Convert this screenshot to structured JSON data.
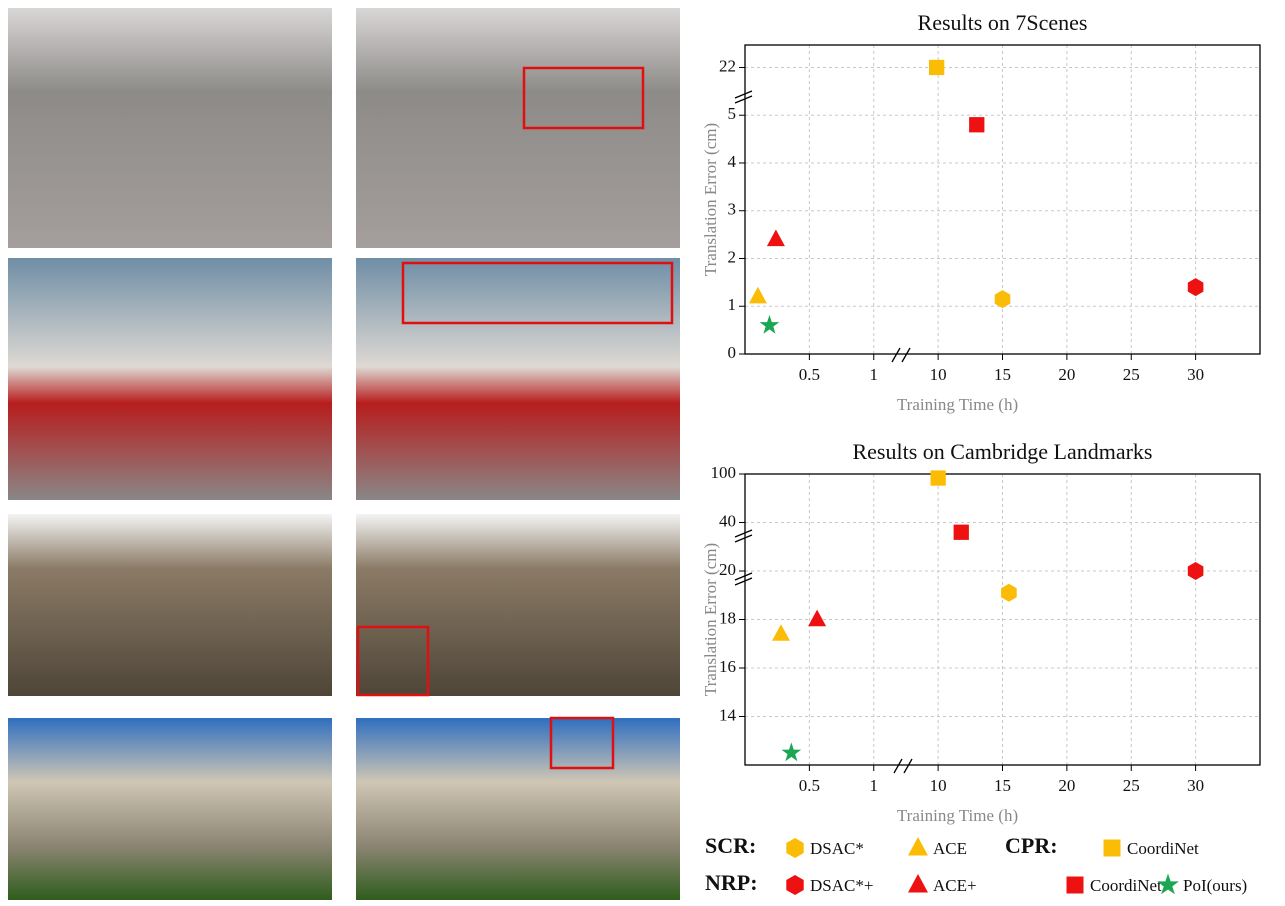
{
  "chart_data": [
    {
      "type": "scatter",
      "title": "Results on 7Scenes",
      "x_label": "Training Time (h)",
      "y_label": "Translation Error (cm)",
      "xlim": [
        0,
        35
      ],
      "xticks": [
        0.5,
        1,
        10,
        15,
        20,
        25,
        30
      ],
      "ylim": [
        0,
        30
      ],
      "yticks": [
        0,
        1,
        2,
        3,
        4,
        5,
        22
      ],
      "grid": true,
      "series": [
        {
          "name": "DSAC*",
          "color": "#fbbc05",
          "marker": "hexagon",
          "x": [
            15
          ],
          "values": [
            1.15
          ]
        },
        {
          "name": "ACE",
          "color": "#fbbc05",
          "marker": "triangle",
          "x": [
            0.1
          ],
          "values": [
            1.2
          ]
        },
        {
          "name": "CoordiNet",
          "color": "#fbbc05",
          "marker": "square",
          "x": [
            9.8
          ],
          "values": [
            22
          ]
        },
        {
          "name": "DSAC*+",
          "color": "#ee1111",
          "marker": "hexagon",
          "x": [
            30
          ],
          "values": [
            1.4
          ]
        },
        {
          "name": "ACE+",
          "color": "#ee1111",
          "marker": "triangle",
          "x": [
            0.24
          ],
          "values": [
            2.4
          ]
        },
        {
          "name": "CoordiNet+",
          "color": "#ee1111",
          "marker": "square",
          "x": [
            13
          ],
          "values": [
            4.8
          ]
        },
        {
          "name": "PoI(ours)",
          "color": "#1aa653",
          "marker": "star",
          "x": [
            0.19
          ],
          "values": [
            0.6
          ]
        }
      ]
    },
    {
      "type": "scatter",
      "title": "Results on Cambridge Landmarks",
      "x_label": "Training Time (h)",
      "y_label": "Translation Error (cm)",
      "xlim": [
        0,
        35
      ],
      "xticks": [
        0.5,
        1,
        10,
        15,
        20,
        25,
        30
      ],
      "ylim": [
        12,
        100
      ],
      "yticks": [
        14,
        16,
        18,
        20,
        40,
        100
      ],
      "grid": true,
      "series": [
        {
          "color": "#fbbc05",
          "marker": "hexagon",
          "x": [
            15.5
          ],
          "values": [
            19.1
          ]
        },
        {
          "color": "#fbbc05",
          "marker": "triangle",
          "x": [
            0.28
          ],
          "values": [
            17.4
          ]
        },
        {
          "color": "#fbbc05",
          "marker": "square",
          "x": [
            10
          ],
          "values": [
            95
          ]
        },
        {
          "color": "#ee1111",
          "marker": "hexagon",
          "x": [
            30
          ],
          "values": [
            20
          ]
        },
        {
          "color": "#ee1111",
          "marker": "triangle",
          "x": [
            0.56
          ],
          "values": [
            18
          ]
        },
        {
          "color": "#ee1111",
          "marker": "square",
          "x": [
            11.8
          ],
          "values": [
            36
          ]
        },
        {
          "color": "#1aa653",
          "marker": "star",
          "x": [
            0.36
          ],
          "values": [
            12.5
          ]
        }
      ]
    }
  ],
  "legend_groups": [
    "SCR:",
    "CPR:",
    "NRP:"
  ]
}
